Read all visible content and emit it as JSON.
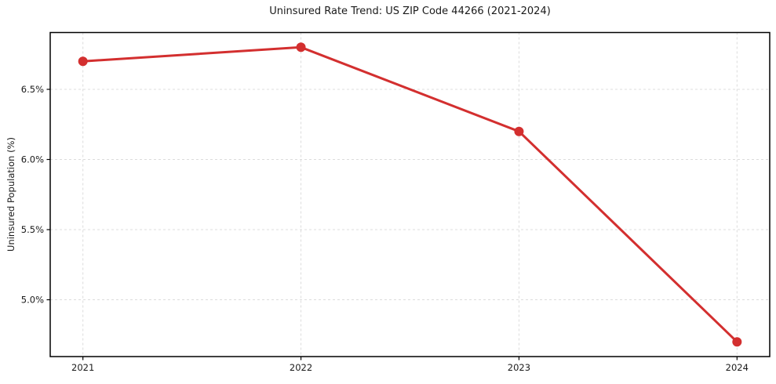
{
  "chart_data": {
    "type": "line",
    "title": "Uninsured Rate Trend: US ZIP Code 44266 (2021-2024)",
    "xlabel": "",
    "ylabel": "Uninsured Population (%)",
    "x": [
      2021,
      2022,
      2023,
      2024
    ],
    "values": [
      6.7,
      6.8,
      6.2,
      4.7
    ],
    "x_tick_labels": [
      "2021",
      "2022",
      "2023",
      "2024"
    ],
    "y_ticks": [
      5.0,
      5.5,
      6.0,
      6.5
    ],
    "y_tick_labels": [
      "5.0%",
      "5.5%",
      "6.0%",
      "6.5%"
    ],
    "xlim": [
      2020.85,
      2024.15
    ],
    "ylim": [
      4.595,
      6.905
    ],
    "grid": true,
    "grid_style": "dashed",
    "legend_position": "none",
    "marker": "circle",
    "colors": {
      "line": "#d32f2f",
      "marker": "#d32f2f",
      "grid": "#dcdcdc",
      "axis": "#000000",
      "text": "#1a1a1a",
      "background": "#ffffff"
    }
  }
}
